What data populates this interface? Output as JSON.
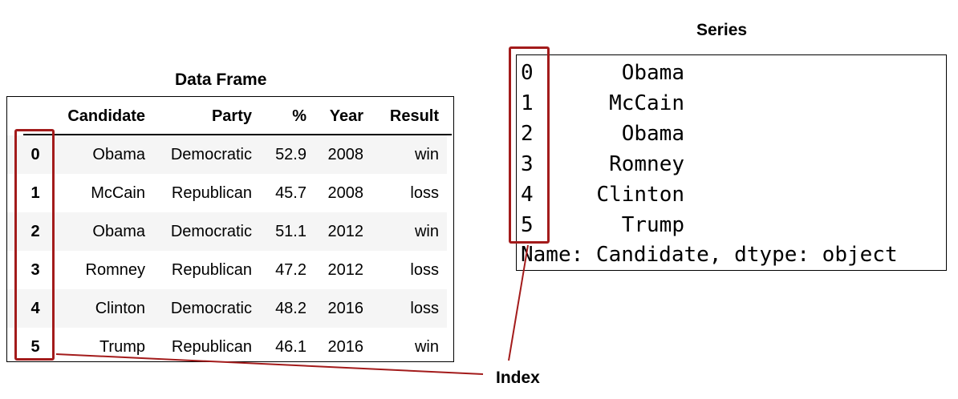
{
  "dataframe": {
    "title": "Data Frame",
    "columns": [
      "Candidate",
      "Party",
      "%",
      "Year",
      "Result"
    ],
    "rows": [
      {
        "index": "0",
        "candidate": "Obama",
        "party": "Democratic",
        "pct": "52.9",
        "year": "2008",
        "result": "win"
      },
      {
        "index": "1",
        "candidate": "McCain",
        "party": "Republican",
        "pct": "45.7",
        "year": "2008",
        "result": "loss"
      },
      {
        "index": "2",
        "candidate": "Obama",
        "party": "Democratic",
        "pct": "51.1",
        "year": "2012",
        "result": "win"
      },
      {
        "index": "3",
        "candidate": "Romney",
        "party": "Republican",
        "pct": "47.2",
        "year": "2012",
        "result": "loss"
      },
      {
        "index": "4",
        "candidate": "Clinton",
        "party": "Democratic",
        "pct": "48.2",
        "year": "2016",
        "result": "loss"
      },
      {
        "index": "5",
        "candidate": "Trump",
        "party": "Republican",
        "pct": "46.1",
        "year": "2016",
        "result": "win"
      }
    ]
  },
  "series": {
    "title": "Series",
    "items": [
      {
        "index": "0",
        "value": "Obama"
      },
      {
        "index": "1",
        "value": "McCain"
      },
      {
        "index": "2",
        "value": "Obama"
      },
      {
        "index": "3",
        "value": "Romney"
      },
      {
        "index": "4",
        "value": "Clinton"
      },
      {
        "index": "5",
        "value": "Trump"
      }
    ],
    "footer": "Name: Candidate, dtype: object"
  },
  "annotation": {
    "label": "Index",
    "color": "#a31b1b"
  }
}
